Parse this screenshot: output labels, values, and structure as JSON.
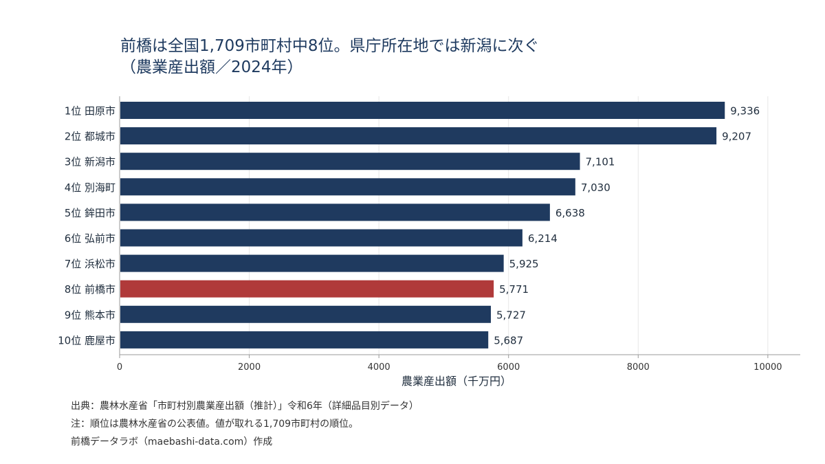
{
  "chart_data": {
    "type": "bar",
    "orientation": "horizontal",
    "title": "前橋は全国1,709市町村中8位。県庁所在地では新潟に次ぐ\n（農業産出額／2024年）",
    "xlabel": "農業産出額（千万円）",
    "ylabel": "",
    "xlim": [
      0,
      10500
    ],
    "xticks": [
      0,
      2000,
      4000,
      6000,
      8000,
      10000
    ],
    "grid": true,
    "categories": [
      "1位 田原市",
      "2位 都城市",
      "3位 新潟市",
      "4位 別海町",
      "5位 鉾田市",
      "6位 弘前市",
      "7位 浜松市",
      "8位 前橋市",
      "9位 熊本市",
      "10位 鹿屋市"
    ],
    "values": [
      9336,
      9207,
      7101,
      7030,
      6638,
      6214,
      5925,
      5771,
      5727,
      5687
    ],
    "value_labels": [
      "9,336",
      "9,207",
      "7,101",
      "7,030",
      "6,638",
      "6,214",
      "5,925",
      "5,771",
      "5,727",
      "5,687"
    ],
    "highlight_index": 7,
    "colors": {
      "bar": "#1f3a5f",
      "highlight": "#b03a3a",
      "grid": "#e6e6e6",
      "axis": "#999999"
    }
  },
  "notes": {
    "source": "出典：農林水産省「市町村別農業産出額（推計）」令和6年（詳細品目別データ）",
    "note": "注：順位は農林水産省の公表値。値が取れる1,709市町村の順位。",
    "credit": "前橋データラボ（maebashi-data.com）作成"
  }
}
